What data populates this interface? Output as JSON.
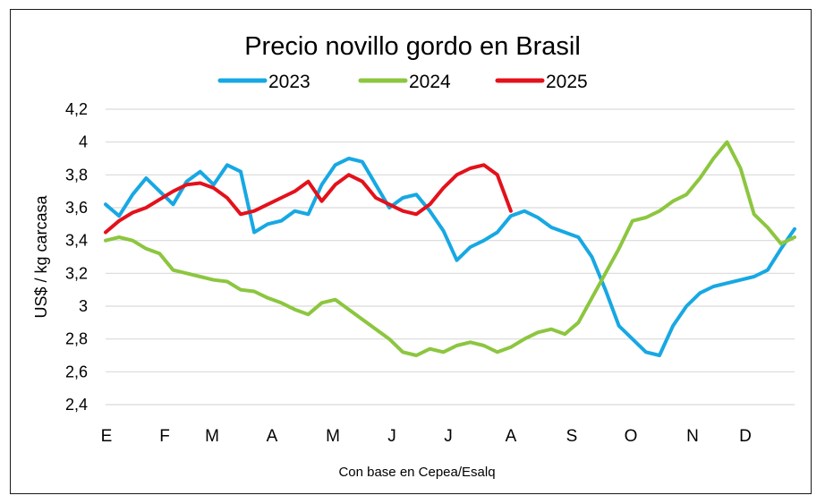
{
  "chart_data": {
    "type": "line",
    "title": "Precio novillo gordo en Brasil",
    "ylabel": "US$ / kg carcasa",
    "xlabel": "Con base en Cepea/Esalq",
    "ylim": [
      2.4,
      4.2
    ],
    "y_ticks": [
      "2,4",
      "2,6",
      "2,8",
      "3",
      "3,2",
      "3,4",
      "3,6",
      "3,8",
      "4",
      "4,2"
    ],
    "y_tick_values": [
      2.4,
      2.6,
      2.8,
      3.0,
      3.2,
      3.4,
      3.6,
      3.8,
      4.0,
      4.2
    ],
    "categories": [
      "E",
      "F",
      "M",
      "A",
      "M",
      "J",
      "J",
      "A",
      "S",
      "O",
      "N",
      "D"
    ],
    "x_unit": "week of year",
    "xlim": [
      1,
      52
    ],
    "grid": "horizontal",
    "legend_position": "top",
    "series": [
      {
        "name": "2023",
        "color": "#17a8e3",
        "x": [
          1,
          2,
          3,
          4,
          5,
          6,
          7,
          8,
          9,
          10,
          11,
          12,
          13,
          14,
          15,
          16,
          17,
          18,
          19,
          20,
          21,
          22,
          23,
          24,
          25,
          26,
          27,
          28,
          29,
          30,
          31,
          32,
          33,
          34,
          35,
          36,
          37,
          38,
          39,
          40,
          41,
          42,
          43,
          44,
          45,
          46,
          47,
          48,
          49,
          50,
          51,
          52
        ],
        "values": [
          3.62,
          3.55,
          3.68,
          3.78,
          3.7,
          3.62,
          3.76,
          3.82,
          3.74,
          3.86,
          3.82,
          3.45,
          3.5,
          3.52,
          3.58,
          3.56,
          3.74,
          3.86,
          3.9,
          3.88,
          3.74,
          3.6,
          3.66,
          3.68,
          3.58,
          3.46,
          3.28,
          3.36,
          3.4,
          3.45,
          3.55,
          3.58,
          3.54,
          3.48,
          3.45,
          3.42,
          3.3,
          3.1,
          2.88,
          2.8,
          2.72,
          2.7,
          2.88,
          3.0,
          3.08,
          3.12,
          3.14,
          3.16,
          3.18,
          3.22,
          3.35,
          3.47
        ]
      },
      {
        "name": "2024",
        "color": "#8cc63f",
        "x": [
          1,
          2,
          3,
          4,
          5,
          6,
          7,
          8,
          9,
          10,
          11,
          12,
          13,
          14,
          15,
          16,
          17,
          18,
          19,
          20,
          21,
          22,
          23,
          24,
          25,
          26,
          27,
          28,
          29,
          30,
          31,
          32,
          33,
          34,
          35,
          36,
          37,
          38,
          39,
          40,
          41,
          42,
          43,
          44,
          45,
          46,
          47,
          48,
          49,
          50,
          51,
          52
        ],
        "values": [
          3.4,
          3.42,
          3.4,
          3.35,
          3.32,
          3.22,
          3.2,
          3.18,
          3.16,
          3.15,
          3.1,
          3.09,
          3.05,
          3.02,
          2.98,
          2.95,
          3.02,
          3.04,
          2.98,
          2.92,
          2.86,
          2.8,
          2.72,
          2.7,
          2.74,
          2.72,
          2.76,
          2.78,
          2.76,
          2.72,
          2.75,
          2.8,
          2.84,
          2.86,
          2.83,
          2.9,
          3.05,
          3.2,
          3.35,
          3.52,
          3.54,
          3.58,
          3.64,
          3.68,
          3.78,
          3.9,
          4.0,
          3.84,
          3.56,
          3.48,
          3.38,
          3.42
        ]
      },
      {
        "name": "2025",
        "color": "#e3111b",
        "x": [
          1,
          2,
          3,
          4,
          5,
          6,
          7,
          8,
          9,
          10,
          11,
          12,
          13,
          14,
          15,
          16,
          17,
          18,
          19,
          20,
          21,
          22,
          23,
          24,
          25,
          26,
          27,
          28,
          29,
          30,
          31
        ],
        "values": [
          3.45,
          3.52,
          3.57,
          3.6,
          3.65,
          3.7,
          3.74,
          3.75,
          3.72,
          3.66,
          3.56,
          3.58,
          3.62,
          3.66,
          3.7,
          3.76,
          3.64,
          3.74,
          3.8,
          3.76,
          3.66,
          3.62,
          3.58,
          3.56,
          3.62,
          3.72,
          3.8,
          3.84,
          3.86,
          3.8,
          3.58
        ]
      }
    ]
  }
}
